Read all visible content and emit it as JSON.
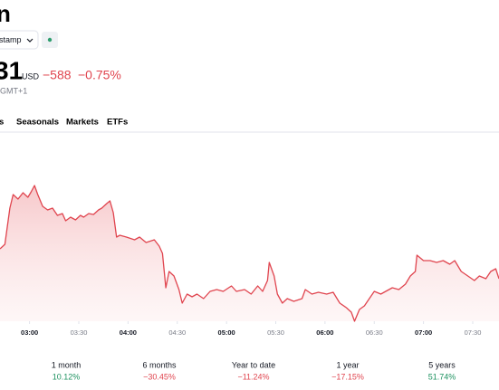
{
  "header": {
    "title": "n",
    "exchange": "stamp",
    "price": "31",
    "currency": "USD",
    "change": "−588",
    "change_percent": "−0.75%",
    "timezone": "GMT+1"
  },
  "tabs": [
    "s",
    "Seasonals",
    "Markets",
    "ETFs"
  ],
  "chart_data": {
    "type": "area",
    "color": "#e0454f",
    "x": [
      162,
      165,
      168,
      170,
      173,
      176,
      179,
      181,
      183,
      185,
      188,
      191,
      194,
      197,
      200,
      202,
      205,
      208,
      211,
      213,
      216,
      219,
      222,
      224,
      227,
      229,
      231,
      233,
      235,
      239,
      244,
      247,
      251,
      256,
      259,
      261,
      263,
      265,
      268,
      271,
      273,
      276,
      279,
      282,
      286,
      290,
      294,
      298,
      303,
      306,
      311,
      315,
      319,
      322,
      325,
      326,
      329,
      331,
      334,
      337,
      341,
      346,
      348,
      352,
      356,
      361,
      365,
      369,
      373,
      376,
      378,
      381,
      384,
      387,
      390,
      394,
      397,
      401,
      405,
      409,
      412,
      415,
      416,
      420,
      424,
      428,
      432,
      436,
      439,
      443,
      447,
      451,
      454,
      458,
      461,
      464,
      466
    ],
    "values": [
      80,
      85,
      125,
      140,
      135,
      142,
      137,
      143,
      150,
      140,
      127,
      123,
      125,
      117,
      119,
      111,
      115,
      112,
      117,
      115,
      119,
      118,
      123,
      125,
      130,
      133,
      120,
      93,
      95,
      93,
      90,
      93,
      87,
      90,
      83,
      75,
      37,
      55,
      50,
      35,
      20,
      30,
      27,
      30,
      25,
      33,
      35,
      33,
      39,
      33,
      35,
      30,
      39,
      33,
      45,
      65,
      50,
      30,
      20,
      25,
      22,
      25,
      35,
      30,
      32,
      30,
      32,
      20,
      15,
      10,
      0,
      13,
      17,
      25,
      33,
      30,
      33,
      37,
      35,
      41,
      50,
      55,
      73,
      67,
      67,
      65,
      67,
      63,
      67,
      55,
      50,
      45,
      50,
      47,
      55,
      58,
      47
    ],
    "xlim": [
      162,
      466
    ],
    "ylim": [
      0,
      210
    ],
    "xticks": [
      {
        "value": 180,
        "label": "03:00"
      },
      {
        "value": 210,
        "label": "03:30"
      },
      {
        "value": 240,
        "label": "04:00"
      },
      {
        "value": 270,
        "label": "04:30"
      },
      {
        "value": 300,
        "label": "05:00"
      },
      {
        "value": 330,
        "label": "05:30"
      },
      {
        "value": 360,
        "label": "06:00"
      },
      {
        "value": 390,
        "label": "06:30"
      },
      {
        "value": 420,
        "label": "07:00"
      },
      {
        "value": 450,
        "label": "07:30"
      }
    ]
  },
  "performance": [
    {
      "label": "1 month",
      "value": "10.12%"
    },
    {
      "label": "6 months",
      "value": "−30.45%"
    },
    {
      "label": "Year to date",
      "value": "−11.24%"
    },
    {
      "label": "1 year",
      "value": "−17.15%"
    },
    {
      "label": "5 years",
      "value": "51.74%"
    }
  ]
}
